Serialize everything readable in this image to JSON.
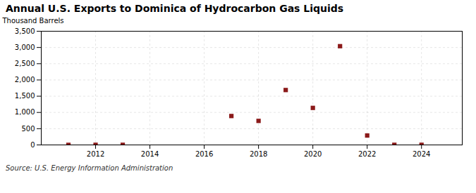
{
  "chart_data": {
    "type": "scatter",
    "title": "Annual U.S. Exports to Dominica of Hydrocarbon Gas Liquids",
    "ylabel": "Thousand Barrels",
    "source": "Source: U.S. Energy Information Administration",
    "x": [
      2011,
      2012,
      2013,
      2017,
      2018,
      2019,
      2020,
      2021,
      2022,
      2023,
      2024
    ],
    "values": [
      2,
      4,
      4,
      890,
      740,
      1690,
      1140,
      3040,
      290,
      4,
      4
    ],
    "color": "#8b1a1a",
    "marker": "square",
    "xlim": [
      2010.0,
      2025.5
    ],
    "ylim": [
      0,
      3500
    ],
    "xticks": [
      2012,
      2014,
      2016,
      2018,
      2020,
      2022,
      2024
    ],
    "yticks": [
      0,
      500,
      {
        "value": 1000,
        "label": "1,000"
      },
      {
        "value": 1500,
        "label": "1,500"
      },
      {
        "value": 2000,
        "label": "2,000"
      },
      {
        "value": 2500,
        "label": "2,500"
      },
      {
        "value": 3000,
        "label": "3,000"
      },
      {
        "value": 3500,
        "label": "3,500"
      }
    ],
    "grid": true
  }
}
